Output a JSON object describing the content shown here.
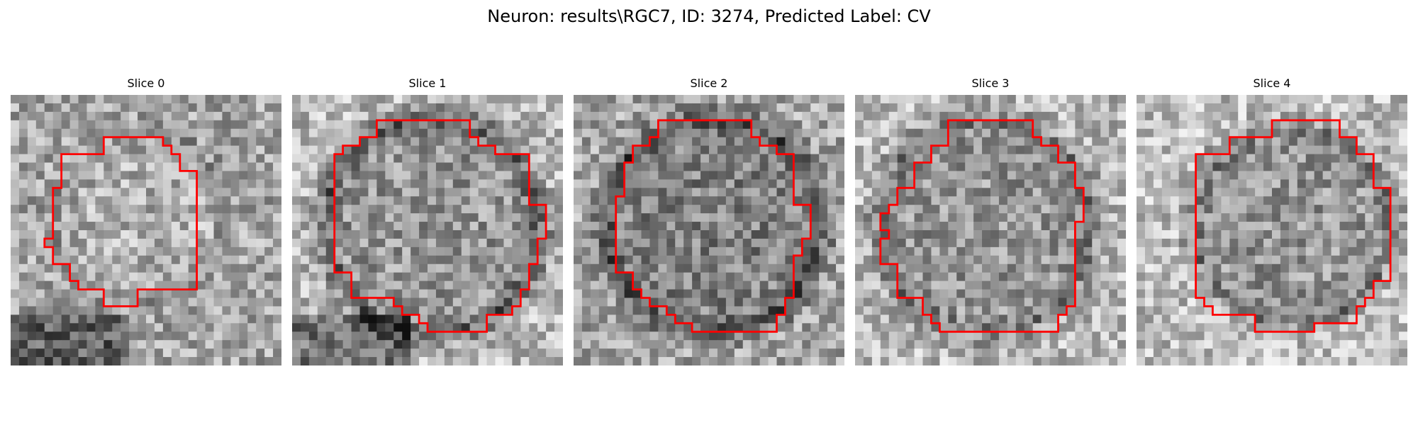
{
  "figure": {
    "title": "Neuron: results\\RGC7, ID: 3274, Predicted Label: CV"
  },
  "panels": [
    {
      "title": "Slice 0",
      "outline_color": "#ff0000"
    },
    {
      "title": "Slice 1",
      "outline_color": "#ff0000"
    },
    {
      "title": "Slice 2",
      "outline_color": "#ff0000"
    },
    {
      "title": "Slice 3",
      "outline_color": "#ff0000"
    },
    {
      "title": "Slice 4",
      "outline_color": "#ff0000"
    }
  ]
}
